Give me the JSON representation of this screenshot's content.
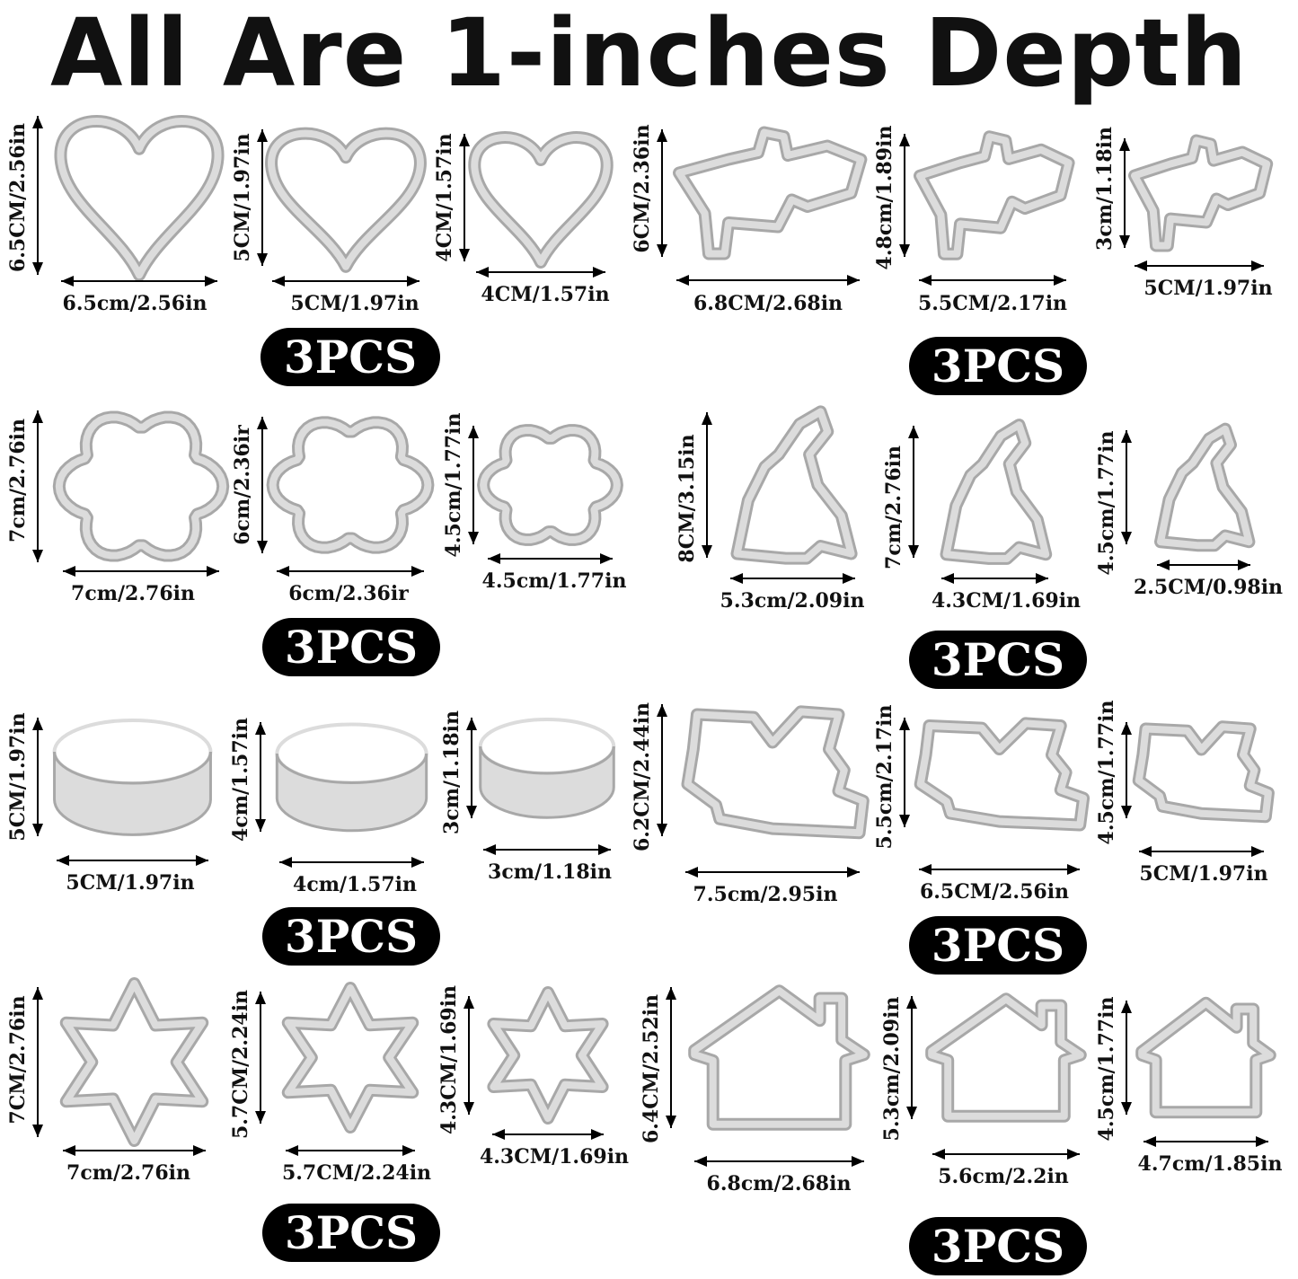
{
  "title": "All Are 1-inches Depth",
  "colors": {
    "steel": "#a8a8a8",
    "steel_light": "#dcdcdc",
    "badge_bg": "#000000",
    "badge_text": "#ffffff"
  },
  "groups": [
    {
      "shape": "heart",
      "badge": "3PCS",
      "items": [
        {
          "height": "6.5CM/2.56in",
          "width": "6.5cm/2.56in"
        },
        {
          "height": "5CM/1.97in",
          "width": "5CM/1.97in"
        },
        {
          "height": "4CM/1.57in",
          "width": "4CM/1.57in"
        }
      ]
    },
    {
      "shape": "angel",
      "badge": "3PCS",
      "items": [
        {
          "height": "6CM/2.36in",
          "width": "6.8CM/2.68in"
        },
        {
          "height": "4.8cm/1.89in",
          "width": "5.5CM/2.17in"
        },
        {
          "height": "3cm/1.18in",
          "width": "5CM/1.97in"
        }
      ]
    },
    {
      "shape": "flower",
      "badge": "3PCS",
      "items": [
        {
          "height": "7cm/2.76in",
          "width": "7cm/2.76in"
        },
        {
          "height": "6cm/2.36ir",
          "width": "6cm/2.36ir"
        },
        {
          "height": "4.5cm/1.77in",
          "width": "4.5cm/1.77in"
        }
      ]
    },
    {
      "shape": "bunny",
      "badge": "3PCS",
      "items": [
        {
          "height": "8CM/3.15in",
          "width": "5.3cm/2.09in"
        },
        {
          "height": "7cm/2.76in",
          "width": "4.3CM/1.69in"
        },
        {
          "height": "4.5cm/1.77in",
          "width": "2.5CM/0.98in"
        }
      ]
    },
    {
      "shape": "circle",
      "badge": "3PCS",
      "items": [
        {
          "height": "5CM/1.97in",
          "width": "5CM/1.97in"
        },
        {
          "height": "4cm/1.57in",
          "width": "4cm/1.57in"
        },
        {
          "height": "3cm/1.18in",
          "width": "3cm/1.18in"
        }
      ]
    },
    {
      "shape": "bird",
      "badge": "3PCS",
      "items": [
        {
          "height": "6.2CM/2.44in",
          "width": "7.5cm/2.95in"
        },
        {
          "height": "5.5cm/2.17in",
          "width": "6.5CM/2.56in"
        },
        {
          "height": "4.5cm/1.77in",
          "width": "5CM/1.97in"
        }
      ]
    },
    {
      "shape": "star",
      "badge": "3PCS",
      "items": [
        {
          "height": "7CM/2.76in",
          "width": "7cm/2.76in"
        },
        {
          "height": "5.7CM/2.24in",
          "width": "5.7CM/2.24in"
        },
        {
          "height": "4.3CM/1.69in",
          "width": "4.3CM/1.69in"
        }
      ]
    },
    {
      "shape": "house",
      "badge": "3PCS",
      "items": [
        {
          "height": "6.4CM/2.52in",
          "width": "6.8cm/2.68in"
        },
        {
          "height": "5.3cm/2.09in",
          "width": "5.6cm/2.2in"
        },
        {
          "height": "4.5cm/1.77in",
          "width": "4.7cm/1.85in"
        }
      ]
    }
  ]
}
